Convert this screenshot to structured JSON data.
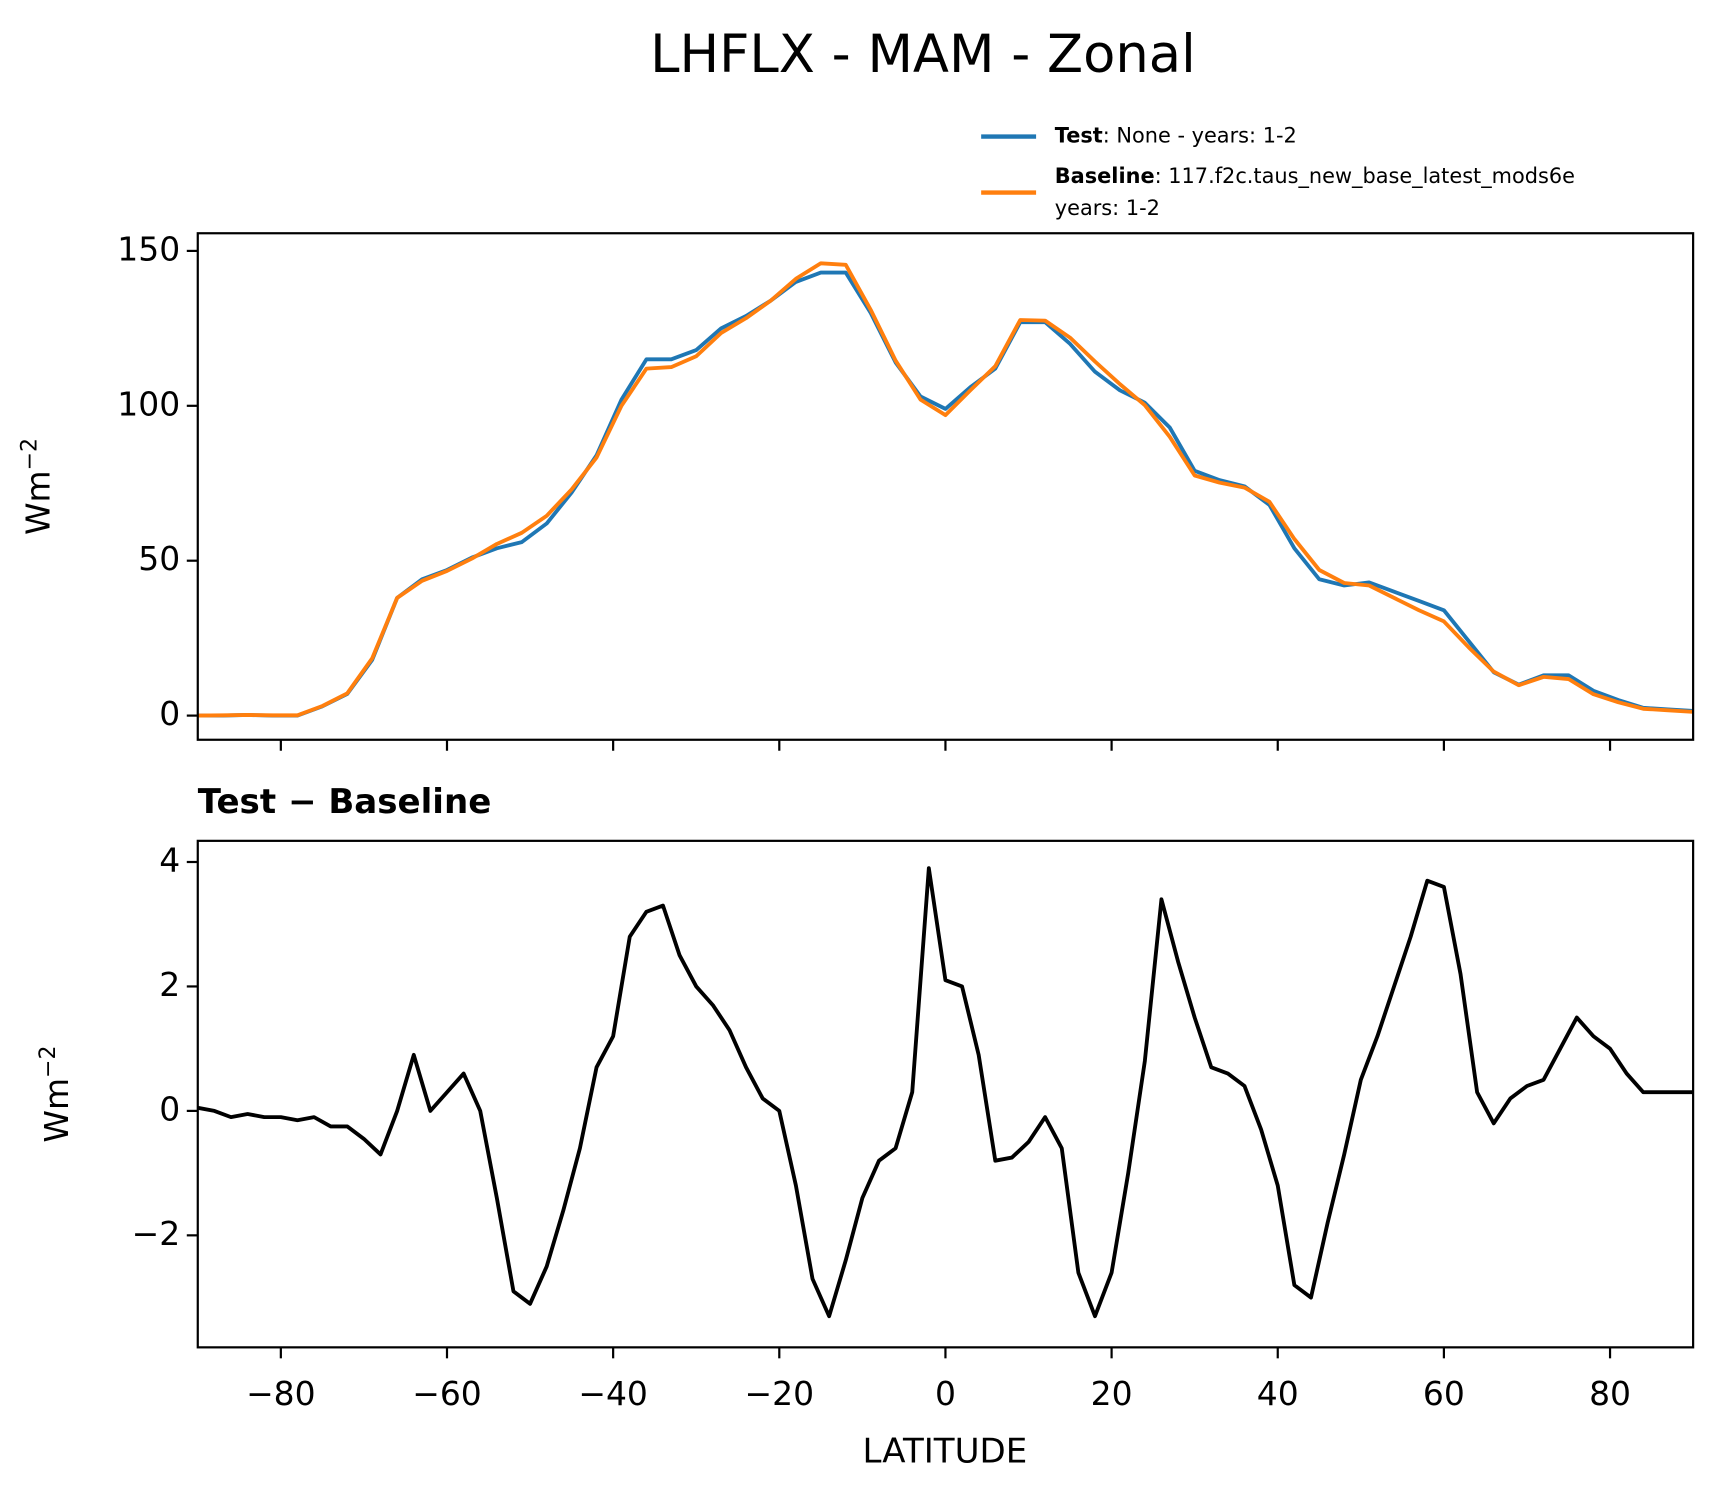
{
  "chart_data": [
    {
      "type": "line",
      "title": "LHFLX - MAM - Zonal",
      "x": [
        -90,
        -87,
        -84,
        -81,
        -78,
        -75,
        -72,
        -69,
        -66,
        -63,
        -60,
        -57,
        -54,
        -51,
        -48,
        -45,
        -42,
        -39,
        -36,
        -33,
        -30,
        -27,
        -24,
        -21,
        -18,
        -15,
        -12,
        -9,
        -6,
        -3,
        0,
        3,
        6,
        9,
        12,
        15,
        18,
        21,
        24,
        27,
        30,
        33,
        36,
        39,
        42,
        45,
        48,
        51,
        54,
        57,
        60,
        63,
        66,
        69,
        72,
        75,
        78,
        81,
        84,
        87,
        90
      ],
      "series": [
        {
          "name": "Test",
          "description": [
            ": None - years: 1-2"
          ],
          "color": "#1f77b4",
          "values": [
            0,
            0,
            0.2,
            0,
            0,
            3,
            7,
            18,
            38,
            44,
            47,
            51,
            54,
            56,
            62,
            72,
            84,
            102,
            115,
            115,
            118,
            125,
            129,
            134,
            140,
            143,
            143,
            130,
            114,
            103,
            99,
            106,
            112,
            127,
            127,
            120,
            111,
            105,
            101,
            93,
            79,
            76,
            74,
            68,
            54,
            44,
            42,
            43,
            40,
            37,
            34,
            24,
            14,
            10,
            13,
            13,
            8,
            5,
            2.5,
            2,
            1.5
          ]
        },
        {
          "name": "Baseline",
          "description": [
            ": 117.f2c.taus_new_base_latest_mods6e",
            "years: 1-2"
          ],
          "color": "#ff7f0e",
          "values": [
            0,
            0.1,
            0.2,
            0.1,
            0.1,
            3.1,
            7.2,
            18.5,
            38,
            43.5,
            46.7,
            50.7,
            55.4,
            59,
            64.5,
            73,
            83.3,
            100,
            112,
            112.5,
            116,
            123.5,
            128.3,
            134,
            141,
            146,
            145.5,
            131,
            114.6,
            102,
            97,
            105,
            112.8,
            127.7,
            127.5,
            122,
            114.3,
            107,
            100.2,
            90,
            77.5,
            75.2,
            73.6,
            69,
            57,
            47,
            42.8,
            42,
            38,
            34,
            30.4,
            22,
            14.2,
            9.8,
            12.5,
            11.8,
            6.9,
            4.3,
            2.2,
            1.7,
            1.2
          ]
        }
      ],
      "ylabel": {
        "base": "Wm",
        "sup": "−2"
      },
      "xlim": [
        -90,
        90
      ],
      "ylim": [
        -7.8,
        155.7
      ],
      "xticks": [
        -80,
        -60,
        -40,
        -20,
        0,
        20,
        40,
        60,
        80
      ],
      "yticks": [
        0,
        50,
        100,
        150
      ],
      "legend": "upper right outside"
    },
    {
      "type": "line",
      "title": "Test − Baseline",
      "x": [
        -90,
        -88,
        -86,
        -84,
        -82,
        -80,
        -78,
        -76,
        -74,
        -72,
        -70,
        -68,
        -66,
        -64,
        -62,
        -60,
        -58,
        -56,
        -54,
        -52,
        -50,
        -48,
        -46,
        -44,
        -42,
        -40,
        -38,
        -36,
        -34,
        -32,
        -30,
        -28,
        -26,
        -24,
        -22,
        -20,
        -18,
        -16,
        -14,
        -12,
        -10,
        -8,
        -6,
        -4,
        -2,
        0,
        2,
        4,
        6,
        8,
        10,
        12,
        14,
        16,
        18,
        20,
        22,
        24,
        26,
        28,
        30,
        32,
        34,
        36,
        38,
        40,
        42,
        44,
        46,
        48,
        50,
        52,
        54,
        56,
        58,
        60,
        62,
        64,
        66,
        68,
        70,
        72,
        74,
        76,
        78,
        80,
        82,
        84,
        86,
        88,
        90
      ],
      "values": [
        0.05,
        0,
        -0.1,
        -0.05,
        -0.1,
        -0.1,
        -0.15,
        -0.1,
        -0.25,
        -0.25,
        -0.45,
        -0.7,
        0,
        0.9,
        0,
        0.3,
        0.6,
        0,
        -1.4,
        -2.9,
        -3.1,
        -2.5,
        -1.6,
        -0.6,
        0.7,
        1.2,
        2.8,
        3.2,
        3.3,
        2.5,
        2.0,
        1.7,
        1.3,
        0.7,
        0.2,
        0,
        -1.2,
        -2.7,
        -3.3,
        -2.4,
        -1.4,
        -0.8,
        -0.6,
        0.3,
        3.9,
        2.1,
        2.0,
        0.9,
        -0.8,
        -0.75,
        -0.5,
        -0.1,
        -0.6,
        -2.6,
        -3.3,
        -2.6,
        -1.0,
        0.8,
        3.4,
        2.4,
        1.5,
        0.7,
        0.6,
        0.4,
        -0.3,
        -1.2,
        -2.8,
        -3.0,
        -1.8,
        -0.7,
        0.5,
        1.2,
        2.0,
        2.8,
        3.7,
        3.6,
        2.2,
        0.3,
        -0.2,
        0.2,
        0.4,
        0.5,
        1.0,
        1.5,
        1.2,
        1.0,
        0.6,
        0.3,
        0.3,
        0.3,
        0.3
      ],
      "color": "#000000",
      "xlabel": "LATITUDE",
      "ylabel": {
        "base": "Wm",
        "sup": "−2"
      },
      "xlim": [
        -90,
        90
      ],
      "ylim": [
        -3.8,
        4.34
      ],
      "xticks": [
        {
          "value": -80,
          "label": "−80"
        },
        {
          "value": -60,
          "label": "−60"
        },
        {
          "value": -40,
          "label": "−40"
        },
        {
          "value": -20,
          "label": "−20"
        },
        0,
        20,
        40,
        60,
        80
      ],
      "yticks": [
        {
          "value": -2,
          "label": "−2"
        },
        0,
        2,
        4
      ]
    }
  ]
}
